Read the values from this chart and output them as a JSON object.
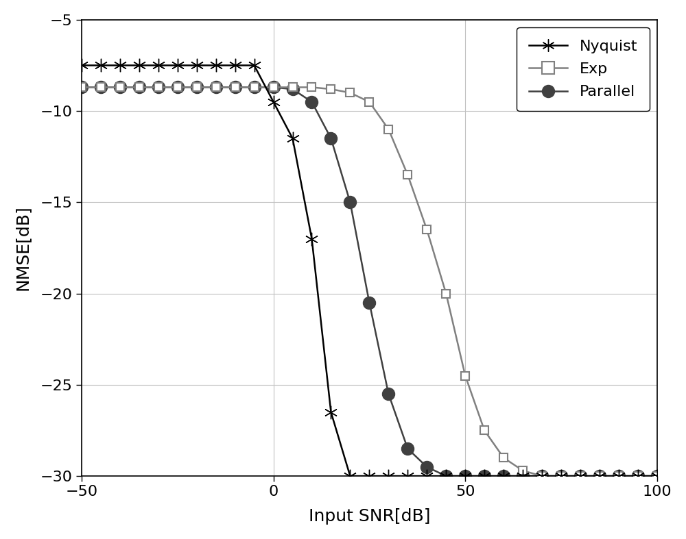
{
  "title": "",
  "xlabel": "Input SNR[dB]",
  "ylabel": "NMSE[dB]",
  "xlim": [
    -50,
    100
  ],
  "ylim": [
    -30,
    -5
  ],
  "xticks": [
    -50,
    0,
    50,
    100
  ],
  "yticks": [
    -30,
    -25,
    -20,
    -15,
    -10,
    -5
  ],
  "nyquist_color": "#000000",
  "exp_color": "#808080",
  "parallel_color": "#404040",
  "nyquist_x": [
    -50,
    -45,
    -40,
    -35,
    -30,
    -25,
    -20,
    -15,
    -10,
    -5,
    0,
    5,
    10,
    15,
    20,
    25,
    30,
    35,
    40,
    45,
    50,
    55,
    60,
    65,
    70,
    75,
    80,
    85,
    90,
    95,
    100
  ],
  "nyquist_y": [
    -7.5,
    -7.5,
    -7.5,
    -7.5,
    -7.5,
    -7.5,
    -7.5,
    -7.5,
    -7.5,
    -7.5,
    -9.5,
    -11.5,
    -17.0,
    -26.5,
    -30.0,
    -30.0,
    -30.0,
    -30.0,
    -30.0,
    -30.0,
    -30.0,
    -30.0,
    -30.0,
    -30.0,
    -30.0,
    -30.0,
    -30.0,
    -30.0,
    -30.0,
    -30.0,
    -30.0
  ],
  "exp_x": [
    -50,
    -45,
    -40,
    -35,
    -30,
    -25,
    -20,
    -15,
    -10,
    -5,
    0,
    5,
    10,
    15,
    20,
    25,
    30,
    35,
    40,
    45,
    50,
    55,
    60,
    65,
    70,
    75,
    80,
    85,
    90,
    95,
    100
  ],
  "exp_y": [
    -8.7,
    -8.7,
    -8.7,
    -8.7,
    -8.7,
    -8.7,
    -8.7,
    -8.7,
    -8.7,
    -8.7,
    -8.7,
    -8.7,
    -8.7,
    -8.8,
    -9.0,
    -9.5,
    -11.0,
    -13.5,
    -16.5,
    -20.0,
    -24.5,
    -27.5,
    -29.0,
    -29.7,
    -30.0,
    -30.0,
    -30.0,
    -30.0,
    -30.0,
    -30.0,
    -30.0
  ],
  "parallel_x": [
    -50,
    -45,
    -40,
    -35,
    -30,
    -25,
    -20,
    -15,
    -10,
    -5,
    0,
    5,
    10,
    15,
    20,
    25,
    30,
    35,
    40,
    45,
    50,
    55,
    60,
    65,
    70,
    75,
    80,
    85,
    90,
    95,
    100
  ],
  "parallel_y": [
    -8.7,
    -8.7,
    -8.7,
    -8.7,
    -8.7,
    -8.7,
    -8.7,
    -8.7,
    -8.7,
    -8.7,
    -8.7,
    -8.8,
    -9.5,
    -11.5,
    -15.0,
    -20.5,
    -25.5,
    -28.5,
    -29.5,
    -30.0,
    -30.0,
    -30.0,
    -30.0,
    -30.0,
    -30.0,
    -30.0,
    -30.0,
    -30.0,
    -30.0,
    -30.0,
    -30.0
  ],
  "legend_labels": [
    "Nyquist",
    "Exp",
    "Parallel"
  ],
  "marker_size_nyquist": 14,
  "marker_size_exp": 9,
  "marker_size_parallel": 13,
  "linewidth": 1.8,
  "grid_color": "#c0c0c0",
  "background_color": "#ffffff"
}
